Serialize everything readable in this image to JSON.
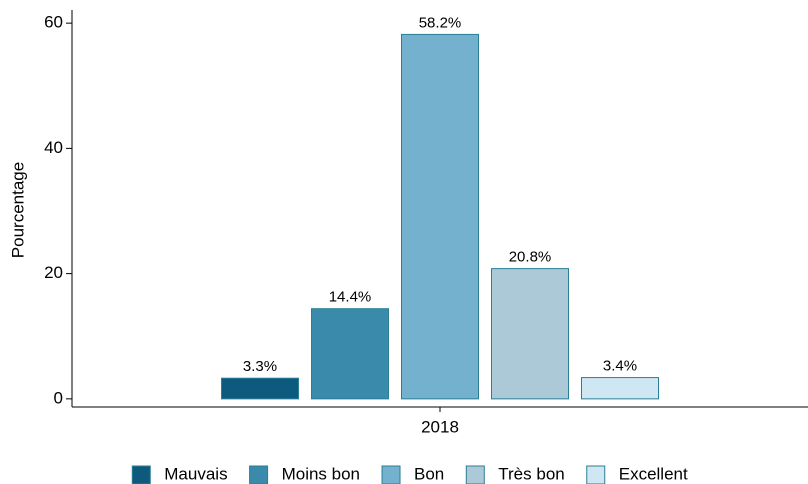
{
  "chart_data": {
    "type": "grouped_bar",
    "categories": [
      "2018"
    ],
    "y_label": "Pourcentage",
    "series": [
      {
        "name": "Mauvais",
        "color": "#0e5a7e",
        "values": [
          3.3
        ],
        "value_labels": [
          "3.3%"
        ]
      },
      {
        "name": "Moins bon",
        "color": "#3a8aab",
        "values": [
          14.4
        ],
        "value_labels": [
          "14.4%"
        ]
      },
      {
        "name": "Bon",
        "color": "#74b1cf",
        "values": [
          58.2
        ],
        "value_labels": [
          "58.2%"
        ]
      },
      {
        "name": "Très bon",
        "color": "#abc9d6",
        "values": [
          20.8
        ],
        "value_labels": [
          "20.8%"
        ]
      },
      {
        "name": "Excellent",
        "color": "#cfe6f3",
        "values": [
          3.4
        ],
        "value_labels": [
          "3.4%"
        ]
      }
    ],
    "ylim": [
      -1.3,
      62.1
    ],
    "yticks": [
      0,
      20,
      40,
      60
    ],
    "grid": false,
    "legend": "bottom"
  }
}
